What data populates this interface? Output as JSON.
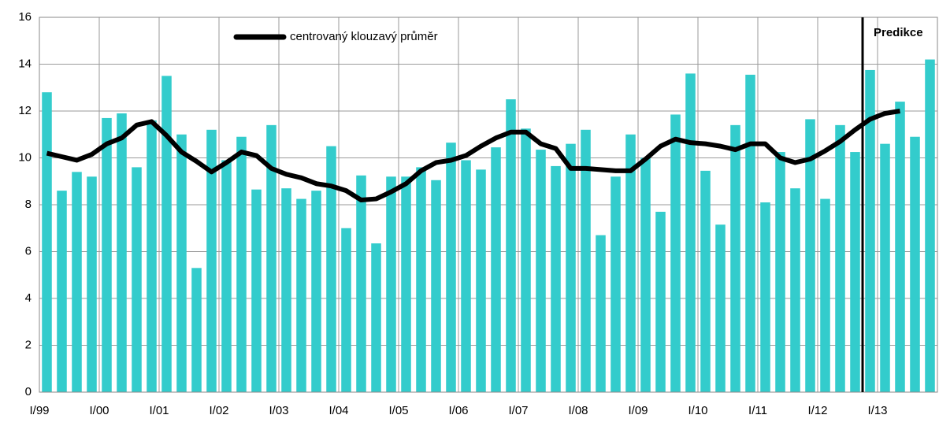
{
  "chart_data": {
    "type": "bar_line",
    "categories": [
      "I/99",
      null,
      null,
      null,
      "I/00",
      null,
      null,
      null,
      "I/01",
      null,
      null,
      null,
      "I/02",
      null,
      null,
      null,
      "I/03",
      null,
      null,
      null,
      "I/04",
      null,
      null,
      null,
      "I/05",
      null,
      null,
      null,
      "I/06",
      null,
      null,
      null,
      "I/07",
      null,
      null,
      null,
      "I/08",
      null,
      null,
      null,
      "I/09",
      null,
      null,
      null,
      "I/10",
      null,
      null,
      null,
      "I/11",
      null,
      null,
      null,
      "I/12",
      null,
      null,
      null,
      "I/13",
      null,
      null,
      null
    ],
    "series": [
      {
        "type": "bar",
        "color": "#33cccc",
        "values": [
          12.8,
          8.6,
          9.4,
          9.2,
          11.7,
          11.9,
          9.6,
          11.6,
          13.5,
          11.0,
          5.3,
          11.2,
          9.9,
          10.9,
          8.65,
          11.4,
          8.7,
          8.25,
          8.6,
          10.5,
          7.0,
          9.25,
          6.35,
          9.2,
          9.2,
          9.6,
          9.05,
          10.65,
          9.9,
          9.5,
          10.45,
          12.5,
          11.25,
          10.35,
          9.65,
          10.6,
          11.2,
          6.7,
          9.2,
          11.0,
          10.0,
          7.7,
          11.85,
          13.6,
          9.45,
          7.15,
          11.4,
          13.55,
          8.1,
          10.25,
          8.7,
          11.65,
          8.25,
          11.4,
          10.25,
          13.75,
          10.6,
          12.4,
          10.9,
          14.2
        ]
      },
      {
        "type": "line",
        "name": "centrovaný klouzavý průměr",
        "color": "#000000",
        "values": [
          10.2,
          10.05,
          9.9,
          10.15,
          10.6,
          10.85,
          11.4,
          11.55,
          10.95,
          10.25,
          9.85,
          9.4,
          9.8,
          10.25,
          10.1,
          9.55,
          9.3,
          9.15,
          8.9,
          8.8,
          8.6,
          8.2,
          8.25,
          8.55,
          8.9,
          9.45,
          9.8,
          9.9,
          10.1,
          10.5,
          10.85,
          11.1,
          11.1,
          10.6,
          10.4,
          9.55,
          9.55,
          9.5,
          9.45,
          9.45,
          9.95,
          10.5,
          10.8,
          10.65,
          10.6,
          10.5,
          10.35,
          10.6,
          10.6,
          10.0,
          9.8,
          9.95,
          10.3,
          10.7,
          11.2,
          11.65,
          11.9,
          12.0,
          null,
          null
        ]
      }
    ],
    "annotations": [
      {
        "text": "Predikce",
        "x": 55
      }
    ],
    "ylim": [
      0,
      16
    ],
    "yticks": [
      0,
      2,
      4,
      6,
      8,
      10,
      12,
      14,
      16
    ],
    "grid": true
  }
}
